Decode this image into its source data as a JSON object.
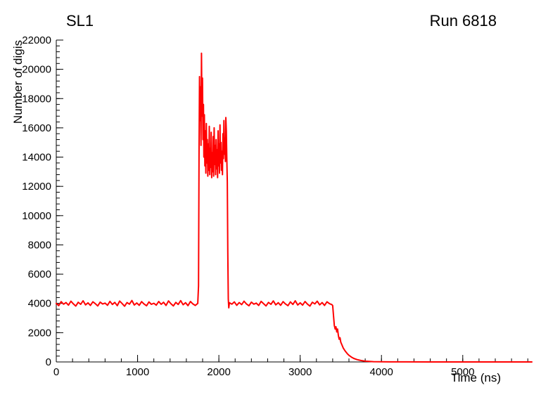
{
  "chart_data": {
    "type": "line",
    "title": "SL1",
    "run_label": "Run 6818",
    "xlabel": "Time (ns)",
    "ylabel": "Number of digis",
    "xlim": [
      0,
      5850
    ],
    "ylim": [
      0,
      22000
    ],
    "x_tick_values": [
      0,
      1000,
      2000,
      3000,
      4000,
      5000
    ],
    "x_tick_labels": [
      "0",
      "1000",
      "2000",
      "3000",
      "4000",
      "5000"
    ],
    "x_minor_step": 200,
    "y_tick_values": [
      0,
      2000,
      4000,
      6000,
      8000,
      10000,
      12000,
      14000,
      16000,
      18000,
      20000,
      22000
    ],
    "y_tick_labels": [
      "0",
      "2000",
      "4000",
      "6000",
      "8000",
      "10000",
      "12000",
      "14000",
      "16000",
      "18000",
      "20000",
      "22000"
    ],
    "y_minor_step": 400,
    "grid": false,
    "legend_position": "none",
    "line_color": "#ff0000",
    "line_width": 2,
    "axis_color": "#000000",
    "background": "#ffffff",
    "points": [
      [
        0,
        4000
      ],
      [
        30,
        3850
      ],
      [
        60,
        4120
      ],
      [
        90,
        3950
      ],
      [
        120,
        4060
      ],
      [
        150,
        3880
      ],
      [
        180,
        4150
      ],
      [
        210,
        3970
      ],
      [
        240,
        3820
      ],
      [
        270,
        4080
      ],
      [
        300,
        3940
      ],
      [
        330,
        4180
      ],
      [
        360,
        3900
      ],
      [
        390,
        4040
      ],
      [
        420,
        3860
      ],
      [
        450,
        4110
      ],
      [
        480,
        3980
      ],
      [
        510,
        3830
      ],
      [
        540,
        4090
      ],
      [
        570,
        3960
      ],
      [
        600,
        4020
      ],
      [
        630,
        3870
      ],
      [
        660,
        4140
      ],
      [
        690,
        3930
      ],
      [
        720,
        4070
      ],
      [
        750,
        3850
      ],
      [
        780,
        4160
      ],
      [
        810,
        3990
      ],
      [
        840,
        3810
      ],
      [
        870,
        4060
      ],
      [
        900,
        3950
      ],
      [
        930,
        4200
      ],
      [
        960,
        3890
      ],
      [
        990,
        4030
      ],
      [
        1020,
        3870
      ],
      [
        1050,
        4120
      ],
      [
        1080,
        3960
      ],
      [
        1110,
        3840
      ],
      [
        1140,
        4100
      ],
      [
        1170,
        3940
      ],
      [
        1200,
        4010
      ],
      [
        1230,
        3880
      ],
      [
        1260,
        4130
      ],
      [
        1290,
        3940
      ],
      [
        1320,
        4080
      ],
      [
        1350,
        3860
      ],
      [
        1380,
        4170
      ],
      [
        1410,
        3980
      ],
      [
        1440,
        3830
      ],
      [
        1470,
        4070
      ],
      [
        1500,
        3930
      ],
      [
        1530,
        4190
      ],
      [
        1560,
        3910
      ],
      [
        1590,
        4050
      ],
      [
        1620,
        3850
      ],
      [
        1650,
        4130
      ],
      [
        1680,
        3970
      ],
      [
        1710,
        3860
      ],
      [
        1740,
        4000
      ],
      [
        1750,
        5200
      ],
      [
        1756,
        14000
      ],
      [
        1762,
        19500
      ],
      [
        1768,
        16500
      ],
      [
        1774,
        18800
      ],
      [
        1780,
        14800
      ],
      [
        1786,
        21100
      ],
      [
        1792,
        16800
      ],
      [
        1798,
        19400
      ],
      [
        1804,
        15200
      ],
      [
        1810,
        17600
      ],
      [
        1816,
        14000
      ],
      [
        1822,
        16900
      ],
      [
        1828,
        13400
      ],
      [
        1834,
        15800
      ],
      [
        1840,
        12900
      ],
      [
        1846,
        16300
      ],
      [
        1852,
        13600
      ],
      [
        1858,
        15200
      ],
      [
        1864,
        12700
      ],
      [
        1870,
        14900
      ],
      [
        1876,
        13100
      ],
      [
        1882,
        16100
      ],
      [
        1888,
        12800
      ],
      [
        1894,
        14600
      ],
      [
        1900,
        13300
      ],
      [
        1906,
        15700
      ],
      [
        1912,
        12600
      ],
      [
        1918,
        14300
      ],
      [
        1924,
        13000
      ],
      [
        1930,
        15400
      ],
      [
        1936,
        12700
      ],
      [
        1942,
        16000
      ],
      [
        1948,
        13500
      ],
      [
        1954,
        14800
      ],
      [
        1960,
        12800
      ],
      [
        1966,
        15200
      ],
      [
        1972,
        13200
      ],
      [
        1978,
        14500
      ],
      [
        1984,
        12600
      ],
      [
        1990,
        15800
      ],
      [
        1996,
        13400
      ],
      [
        2002,
        14900
      ],
      [
        2008,
        12900
      ],
      [
        2014,
        16200
      ],
      [
        2020,
        13600
      ],
      [
        2026,
        15000
      ],
      [
        2032,
        13100
      ],
      [
        2038,
        14400
      ],
      [
        2044,
        12800
      ],
      [
        2050,
        15600
      ],
      [
        2056,
        13900
      ],
      [
        2062,
        16500
      ],
      [
        2068,
        14200
      ],
      [
        2074,
        15300
      ],
      [
        2080,
        13700
      ],
      [
        2086,
        16700
      ],
      [
        2092,
        15800
      ],
      [
        2098,
        13900
      ],
      [
        2104,
        12300
      ],
      [
        2110,
        7500
      ],
      [
        2116,
        4300
      ],
      [
        2122,
        3700
      ],
      [
        2130,
        4050
      ],
      [
        2160,
        3950
      ],
      [
        2190,
        4100
      ],
      [
        2220,
        3870
      ],
      [
        2250,
        4060
      ],
      [
        2280,
        3920
      ],
      [
        2310,
        4150
      ],
      [
        2340,
        3960
      ],
      [
        2370,
        3840
      ],
      [
        2400,
        4090
      ],
      [
        2430,
        3950
      ],
      [
        2460,
        4020
      ],
      [
        2490,
        3860
      ],
      [
        2520,
        4140
      ],
      [
        2550,
        3980
      ],
      [
        2580,
        3830
      ],
      [
        2610,
        4070
      ],
      [
        2640,
        3940
      ],
      [
        2670,
        4170
      ],
      [
        2700,
        3900
      ],
      [
        2730,
        4050
      ],
      [
        2760,
        3870
      ],
      [
        2790,
        4120
      ],
      [
        2820,
        3960
      ],
      [
        2850,
        3850
      ],
      [
        2880,
        4100
      ],
      [
        2910,
        3930
      ],
      [
        2940,
        4180
      ],
      [
        2970,
        3890
      ],
      [
        3000,
        4040
      ],
      [
        3030,
        3880
      ],
      [
        3060,
        4130
      ],
      [
        3090,
        3950
      ],
      [
        3120,
        3820
      ],
      [
        3150,
        4080
      ],
      [
        3180,
        3970
      ],
      [
        3210,
        4150
      ],
      [
        3240,
        3900
      ],
      [
        3270,
        4060
      ],
      [
        3300,
        3860
      ],
      [
        3330,
        4110
      ],
      [
        3360,
        3980
      ],
      [
        3390,
        3920
      ],
      [
        3400,
        3850
      ],
      [
        3410,
        3200
      ],
      [
        3420,
        2500
      ],
      [
        3430,
        2250
      ],
      [
        3440,
        2400
      ],
      [
        3450,
        2050
      ],
      [
        3460,
        2250
      ],
      [
        3470,
        1800
      ],
      [
        3480,
        1550
      ],
      [
        3490,
        1650
      ],
      [
        3500,
        1350
      ],
      [
        3515,
        1150
      ],
      [
        3530,
        950
      ],
      [
        3545,
        820
      ],
      [
        3560,
        700
      ],
      [
        3580,
        560
      ],
      [
        3600,
        450
      ],
      [
        3630,
        330
      ],
      [
        3660,
        240
      ],
      [
        3700,
        160
      ],
      [
        3750,
        95
      ],
      [
        3800,
        55
      ],
      [
        3850,
        35
      ],
      [
        3900,
        20
      ],
      [
        4000,
        10
      ],
      [
        4100,
        6
      ],
      [
        4300,
        3
      ],
      [
        4600,
        2
      ],
      [
        5000,
        1
      ],
      [
        5400,
        1
      ],
      [
        5850,
        0
      ]
    ]
  }
}
